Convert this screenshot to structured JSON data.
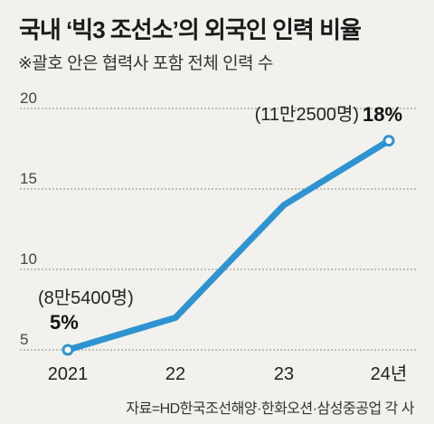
{
  "title": "국내 ‘빅3 조선소’의 외국인 인력 비율",
  "subtitle": "※괄호 안은 협력사 포함 전체 인력 수",
  "source": "자료=HD한국조선해양·한화오션·삼성중공업 각 사",
  "colors": {
    "line": "#2e93d1",
    "background": "#f2f1ed",
    "grid": "#8a8a8a"
  },
  "chart_data": {
    "type": "line",
    "title": "국내 ‘빅3 조선소’의 외국인 인력 비율",
    "categories": [
      "2021",
      "22",
      "23",
      "24년"
    ],
    "series": [
      {
        "values": [
          5,
          7,
          14,
          18
        ]
      }
    ],
    "ylim": [
      5,
      20
    ],
    "yticks": [
      "5",
      "10",
      "15",
      "20"
    ],
    "grid": true,
    "annotations": [
      {
        "category": "2021",
        "count_label": "(8만5400명)",
        "pct_label": "5%"
      },
      {
        "category": "24년",
        "count_label": "(11만2500명)",
        "pct_label": "18%"
      }
    ]
  }
}
